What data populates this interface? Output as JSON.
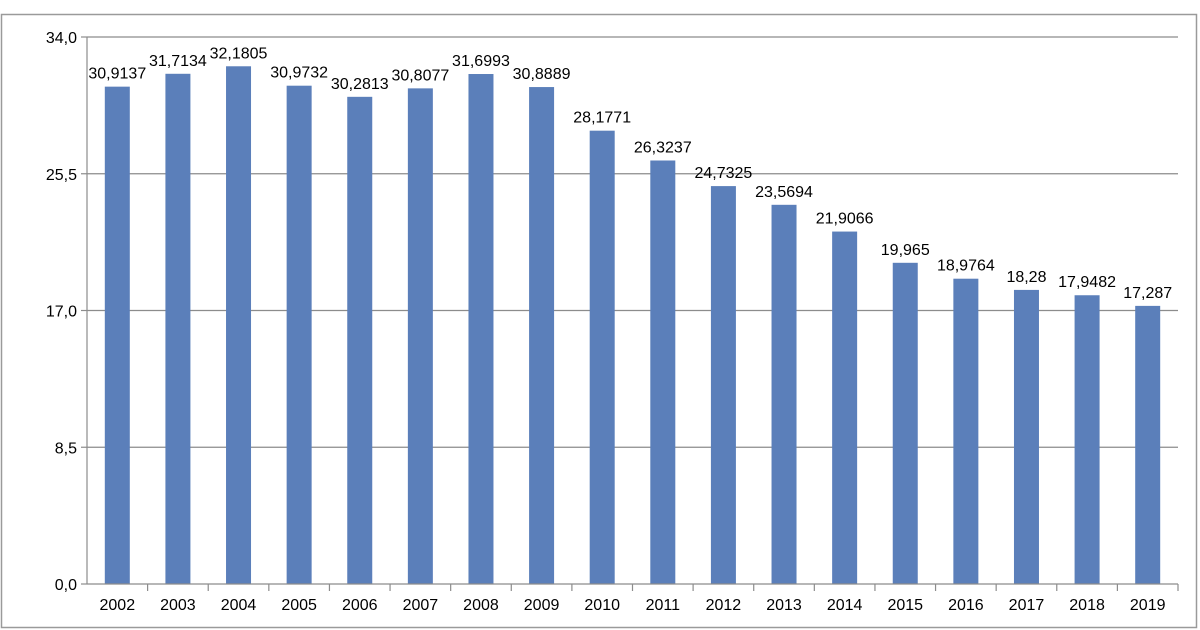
{
  "chart_data": {
    "type": "bar",
    "title": "",
    "xlabel": "",
    "ylabel": "",
    "categories": [
      "2002",
      "2003",
      "2004",
      "2005",
      "2006",
      "2007",
      "2008",
      "2009",
      "2010",
      "2011",
      "2012",
      "2013",
      "2014",
      "2015",
      "2016",
      "2017",
      "2018",
      "2019"
    ],
    "values": [
      30.9137,
      31.7134,
      32.1805,
      30.9732,
      30.2813,
      30.8077,
      31.6993,
      30.8889,
      28.1771,
      26.3237,
      24.7325,
      23.5694,
      21.9066,
      19.965,
      18.9764,
      18.28,
      17.9482,
      17.287
    ],
    "value_labels": [
      "30,9137",
      "31,7134",
      "32,1805",
      "30,9732",
      "30,2813",
      "30,8077",
      "31,6993",
      "30,8889",
      "28,1771",
      "26,3237",
      "24,7325",
      "23,5694",
      "21,9066",
      "19,965",
      "18,9764",
      "18,28",
      "17,9482",
      "17,287"
    ],
    "y_ticks": [
      0,
      8.5,
      17,
      25.5,
      34
    ],
    "y_tick_labels": [
      "0,0",
      "8,5",
      "17,0",
      "25,5",
      "34,0"
    ],
    "ylim": [
      0,
      34
    ],
    "grid": true,
    "legend": "none",
    "colors": {
      "bar": "#5b7fba",
      "grid": "#8c8c8c",
      "axis": "#8c8c8c",
      "frame": "#9a9a9a"
    }
  }
}
